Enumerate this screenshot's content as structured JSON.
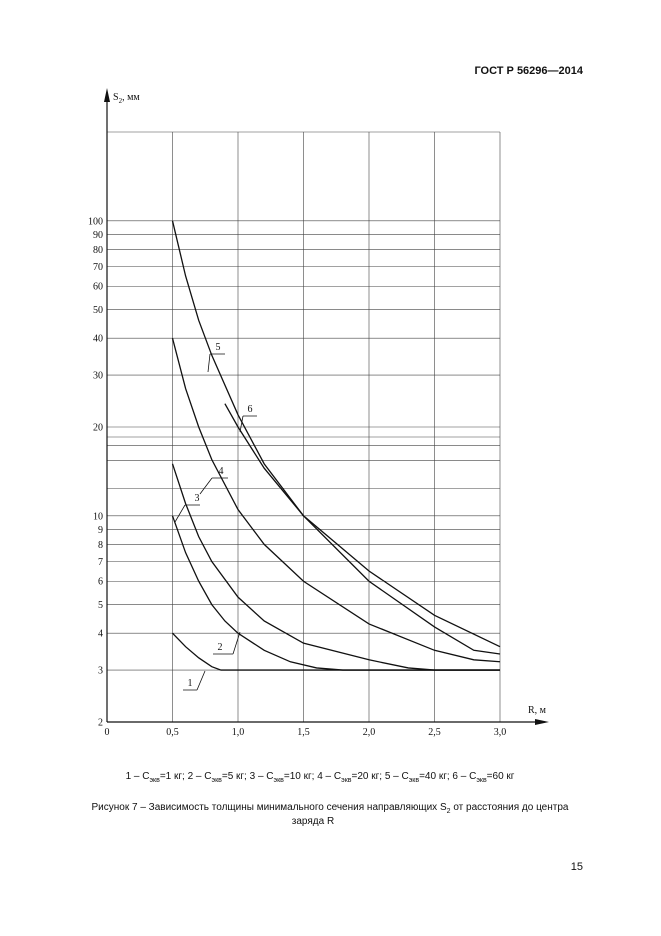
{
  "header": {
    "doc_id": "ГОСТ Р 56296—2014"
  },
  "chart_data": {
    "type": "line",
    "y_label": "S",
    "y_label_sub": "2",
    "y_label_unit": ", мм",
    "x_label": "R, м",
    "log_y": true,
    "grid": true,
    "color": "#111111",
    "xlim": [
      0,
      3.0
    ],
    "xticks": [
      0,
      {
        "value": 0.5,
        "label": "0,5"
      },
      {
        "value": 1.0,
        "label": "1,0"
      },
      {
        "value": 1.5,
        "label": "1,5"
      },
      {
        "value": 2.0,
        "label": "2,0"
      },
      {
        "value": 2.5,
        "label": "2,5"
      },
      {
        "value": 3.0,
        "label": "3,0"
      }
    ],
    "ylim": [
      2,
      200
    ],
    "yticks": [
      2,
      3,
      4,
      5,
      6,
      7,
      8,
      9,
      10,
      20,
      30,
      40,
      50,
      60,
      70,
      80,
      90,
      100
    ],
    "ygrid_minor": [
      18.5,
      17.3,
      15.4,
      12.4
    ],
    "series": [
      {
        "name": "1",
        "x": [
          0.5,
          0.6,
          0.7,
          0.8,
          0.87,
          1.0,
          1.5,
          2.0,
          2.5,
          3.0
        ],
        "values": [
          4,
          3.6,
          3.3,
          3.08,
          3,
          3,
          3,
          3,
          3,
          3
        ]
      },
      {
        "name": "2",
        "x": [
          0.5,
          0.6,
          0.7,
          0.8,
          0.9,
          1.0,
          1.2,
          1.4,
          1.6,
          1.8,
          2.0,
          3.0
        ],
        "values": [
          10,
          7.5,
          6.0,
          5.0,
          4.4,
          4.0,
          3.5,
          3.2,
          3.05,
          3.0,
          3.0,
          3.0
        ]
      },
      {
        "name": "3",
        "x": [
          0.5,
          0.6,
          0.7,
          0.8,
          1.0,
          1.2,
          1.5,
          2.0,
          2.3,
          2.5,
          3.0
        ],
        "values": [
          15,
          11,
          8.5,
          7.0,
          5.3,
          4.4,
          3.7,
          3.25,
          3.05,
          3.0,
          3.0
        ]
      },
      {
        "name": "4",
        "x": [
          0.5,
          0.6,
          0.7,
          0.8,
          1.0,
          1.2,
          1.5,
          2.0,
          2.5,
          2.8,
          3.0
        ],
        "values": [
          40,
          27,
          20,
          15.5,
          10.5,
          8.0,
          6.0,
          4.3,
          3.5,
          3.25,
          3.2
        ]
      },
      {
        "name": "5",
        "x": [
          0.5,
          0.6,
          0.7,
          0.8,
          1.0,
          1.2,
          1.5,
          2.0,
          2.5,
          2.8,
          3.0
        ],
        "values": [
          100,
          65,
          46,
          35,
          22,
          15,
          10,
          6.0,
          4.2,
          3.5,
          3.4
        ]
      },
      {
        "name": "6",
        "x": [
          0.9,
          1.0,
          1.2,
          1.5,
          2.0,
          2.5,
          3.0
        ],
        "values": [
          24,
          20,
          14.5,
          10,
          6.5,
          4.6,
          3.6
        ]
      }
    ]
  },
  "legend": [
    {
      "text": "1 – С",
      "sub": "экв",
      "rest": "=1 кг; "
    },
    {
      "text": "2 – С",
      "sub": "экв",
      "rest": "=5 кг; "
    },
    {
      "text": "3 – С",
      "sub": "экв",
      "rest": "=10 кг; "
    },
    {
      "text": "4 – С",
      "sub": "экв",
      "rest": "=20 кг; "
    },
    {
      "text": "5 – С",
      "sub": "экв",
      "rest": "=40 кг; "
    },
    {
      "text": "6 – С",
      "sub": "экв",
      "rest": "=60 кг"
    }
  ],
  "caption": {
    "line1_start": "Рисунок 7 – Зависимость толщины минимального сечения направляющих S",
    "line1_sub": "2",
    "line1_end": " от расстояния до центра",
    "line2": "заряда R"
  },
  "footer": {
    "page_number": "15"
  }
}
